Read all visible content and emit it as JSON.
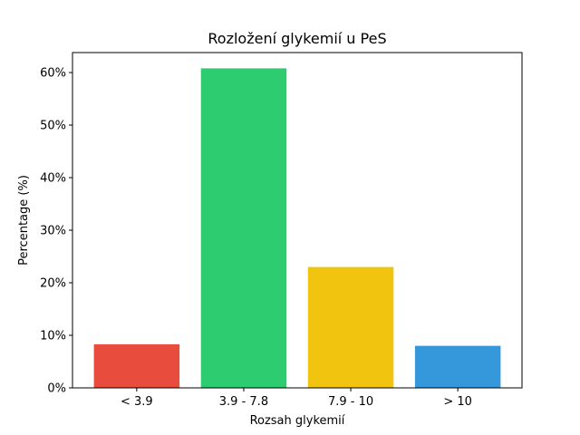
{
  "chart_data": {
    "type": "bar",
    "title": "Rozložení glykemií u  PeS",
    "xlabel": "Rozsah glykemií",
    "ylabel": "Percentage (%)",
    "categories": [
      "< 3.9",
      "3.9 - 7.8",
      "7.9 - 10",
      "> 10"
    ],
    "values": [
      8.3,
      60.8,
      23.0,
      8.0
    ],
    "colors": [
      "#e74c3c",
      "#2ecc71",
      "#f1c40f",
      "#3498db"
    ],
    "ylim": [
      0,
      63.8
    ],
    "yticks": [
      0,
      10,
      20,
      30,
      40,
      50,
      60
    ],
    "ytick_labels": [
      "0%",
      "10%",
      "20%",
      "30%",
      "40%",
      "50%",
      "60%"
    ],
    "grid": false,
    "legend": "none"
  }
}
